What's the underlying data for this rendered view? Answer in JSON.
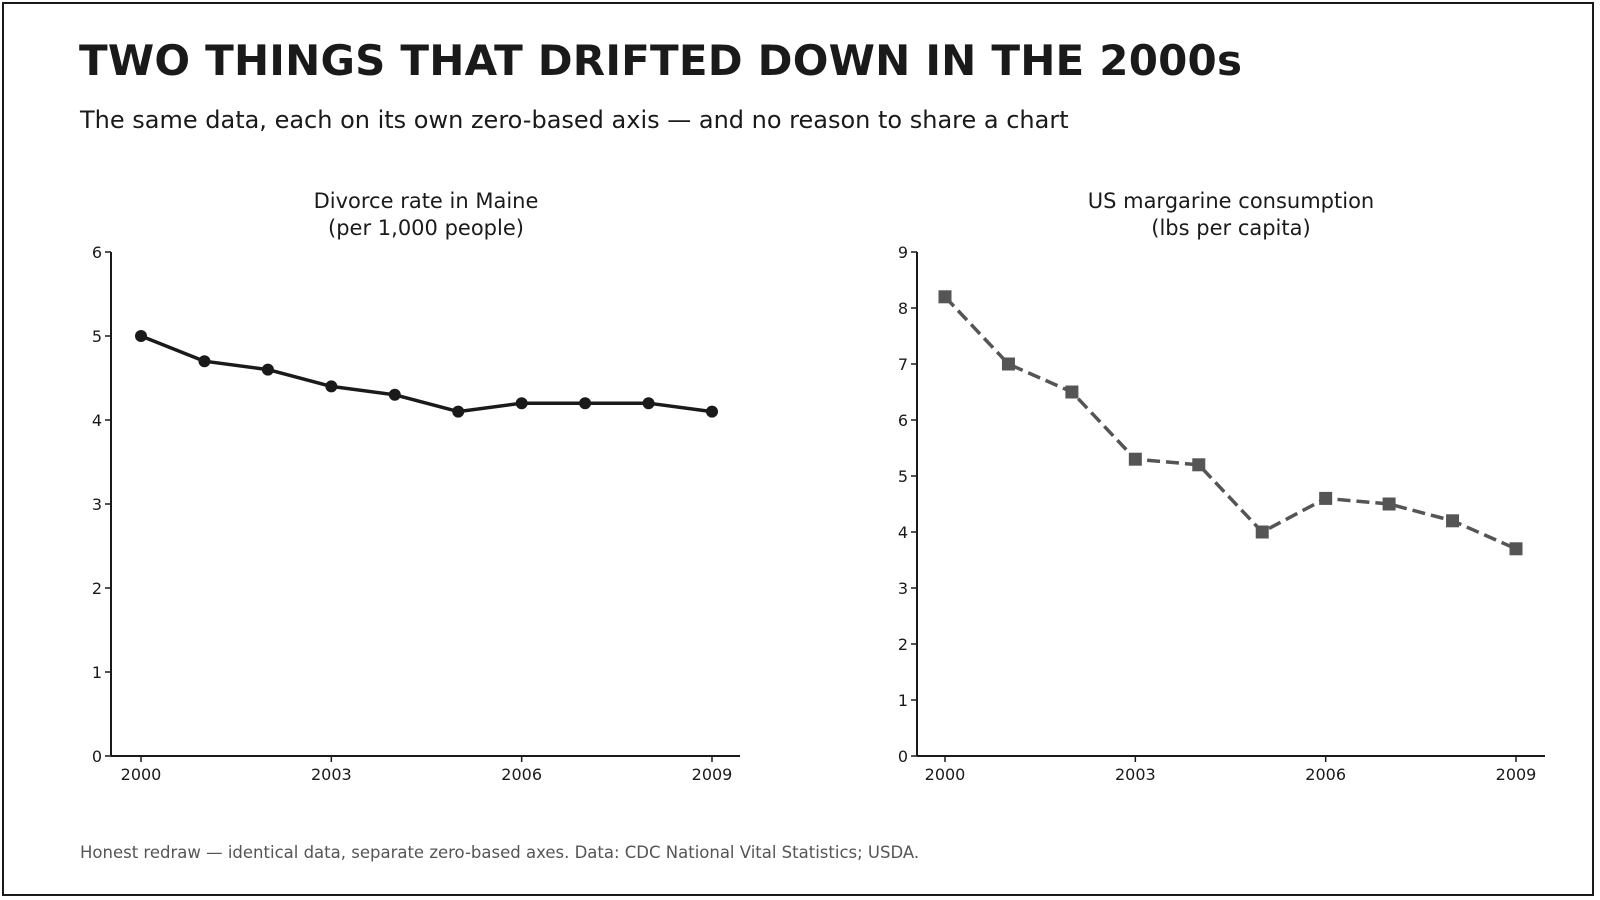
{
  "header": {
    "title": "TWO THINGS THAT DRIFTED DOWN IN THE 2000s",
    "subtitle": "The same data, each on its own zero-based axis — and no reason to share a chart"
  },
  "footer": {
    "note": "Honest redraw — identical data, separate zero-based axes. Data: CDC National Vital Statistics; USDA."
  },
  "chart_data": [
    {
      "type": "line",
      "title": "Divorce rate in Maine\n(per 1,000 people)",
      "title_lines": [
        "Divorce rate in Maine",
        "(per 1,000 people)"
      ],
      "x": [
        2000,
        2001,
        2002,
        2003,
        2004,
        2005,
        2006,
        2007,
        2008,
        2009
      ],
      "x_ticks": [
        2000,
        2003,
        2006,
        2009
      ],
      "y_ticks": [
        0,
        1,
        2,
        3,
        4,
        5,
        6
      ],
      "ylim": [
        0,
        6
      ],
      "series": [
        {
          "values": [
            5.0,
            4.7,
            4.6,
            4.4,
            4.3,
            4.1,
            4.2,
            4.2,
            4.2,
            4.1
          ],
          "color": "#1a1a1a",
          "line_style": "solid",
          "marker": "circle"
        }
      ],
      "grid": false,
      "xlabel": "",
      "ylabel": ""
    },
    {
      "type": "line",
      "title": "US margarine consumption\n(lbs per capita)",
      "title_lines": [
        "US margarine consumption",
        "(lbs per capita)"
      ],
      "x": [
        2000,
        2001,
        2002,
        2003,
        2004,
        2005,
        2006,
        2007,
        2008,
        2009
      ],
      "x_ticks": [
        2000,
        2003,
        2006,
        2009
      ],
      "y_ticks": [
        0,
        1,
        2,
        3,
        4,
        5,
        6,
        7,
        8,
        9
      ],
      "ylim": [
        0,
        9
      ],
      "series": [
        {
          "values": [
            8.2,
            7.0,
            6.5,
            5.3,
            5.2,
            4.0,
            4.6,
            4.5,
            4.2,
            3.7
          ],
          "color": "#555555",
          "line_style": "dashed",
          "marker": "square"
        }
      ],
      "grid": false,
      "xlabel": "",
      "ylabel": ""
    }
  ]
}
